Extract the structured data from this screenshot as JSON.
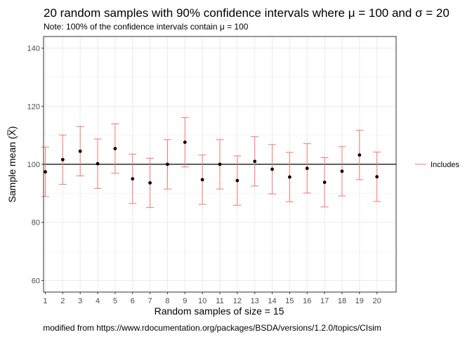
{
  "chart_data": {
    "type": "scatter",
    "title": "20 random samples with 90% confidence intervals where μ = 100 and σ = 20",
    "subtitle": "Note: 100% of the confidence intervals contain μ = 100",
    "xlabel": "Random samples of size = 15",
    "ylabel": "Sample mean (X̅)",
    "caption": "modified from https://www.rdocumentation.org/packages/BSDA/versions/1.2.0/topics/CIsim",
    "ylim": [
      56,
      144
    ],
    "yticks": [
      60,
      80,
      100,
      120,
      140
    ],
    "reference_line": 100,
    "grid": true,
    "legend": {
      "position": "right",
      "entries": [
        "Includes"
      ]
    },
    "colors": {
      "interval": "#f8766d",
      "point": "#000000",
      "reference": "#000000",
      "grid": "#ebebeb",
      "panel_border": "#333333"
    },
    "x": [
      "1",
      "2",
      "3",
      "4",
      "5",
      "6",
      "7",
      "8",
      "9",
      "10",
      "11",
      "12",
      "13",
      "14",
      "15",
      "16",
      "17",
      "18",
      "19",
      "20"
    ],
    "series": [
      {
        "name": "Includes",
        "mean": [
          97.4,
          101.6,
          104.5,
          100.2,
          105.4,
          95.0,
          93.6,
          100.0,
          107.6,
          94.7,
          100.0,
          94.4,
          101.0,
          98.3,
          95.6,
          98.6,
          93.8,
          97.6,
          103.2,
          95.7
        ],
        "lower": [
          88.9,
          93.1,
          96.0,
          91.7,
          96.9,
          86.5,
          85.1,
          91.5,
          99.1,
          86.2,
          91.5,
          85.9,
          92.5,
          89.8,
          87.1,
          90.1,
          85.3,
          89.1,
          94.7,
          87.2
        ],
        "upper": [
          105.9,
          110.1,
          113.0,
          108.7,
          113.9,
          103.5,
          102.1,
          108.5,
          116.1,
          103.2,
          108.5,
          102.9,
          109.5,
          106.8,
          104.1,
          107.1,
          102.3,
          106.1,
          111.7,
          104.2
        ]
      }
    ]
  }
}
